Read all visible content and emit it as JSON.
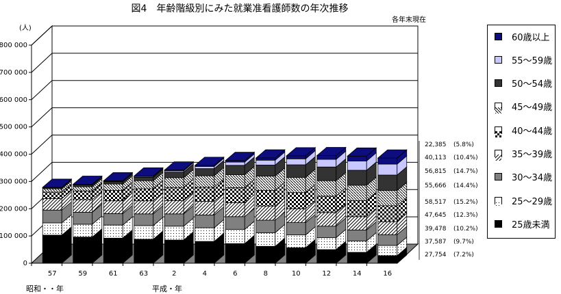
{
  "title": "図4　年齢階級別にみた就業准看護師数の年次推移",
  "stand_date": "各年末現在",
  "era_labels": {
    "showa": "昭和・・年",
    "heisei": "平成・年"
  },
  "colors": {
    "60歳以上": "#0d0d80",
    "55～59歳": "#c8c8ff",
    "50～54歳": "#333333",
    "45～49歳": "#ffffff",
    "40～44歳": "#ffffff",
    "35～39歳": "#ffffff",
    "30～34歳": "#808080",
    "25～29歳": "#ffffff",
    "25歳未満": "#000000"
  },
  "chart_data": {
    "type": "bar",
    "stacked": true,
    "three_d": true,
    "title": "図4　年齢階級別にみた就業准看護師数の年次推移",
    "ylabel": "(人)",
    "ylim": [
      0,
      800000
    ],
    "yticks": [
      "0",
      "100 000",
      "200 000",
      "300 000",
      "400 000",
      "500 000",
      "600 000",
      "700 000",
      "800 000"
    ],
    "categories": [
      "57",
      "59",
      "61",
      "63",
      "2",
      "4",
      "6",
      "8",
      "10",
      "12",
      "14",
      "16"
    ],
    "legend": [
      "60歳以上",
      "55～59歳",
      "50～54歳",
      "45～49歳",
      "40～44歳",
      "35～39歳",
      "30～34歳",
      "25～29歳",
      "25歳未満"
    ],
    "series": [
      {
        "name": "25歳未満",
        "values": [
          103000,
          96000,
          92000,
          88000,
          85000,
          80000,
          72000,
          62000,
          57000,
          50000,
          40000,
          27754
        ]
      },
      {
        "name": "25～29歳",
        "values": [
          45000,
          47000,
          48000,
          50000,
          51000,
          50000,
          52000,
          50000,
          47000,
          44000,
          42000,
          37587
        ]
      },
      {
        "name": "30～34歳",
        "values": [
          47000,
          44000,
          42000,
          43000,
          45000,
          47000,
          47000,
          46000,
          45000,
          42000,
          40000,
          39478
        ]
      },
      {
        "name": "35～39歳",
        "values": [
          42000,
          46000,
          47000,
          48000,
          49000,
          50000,
          51000,
          52000,
          51000,
          50000,
          49000,
          47645
        ]
      },
      {
        "name": "40～44歳",
        "values": [
          24000,
          32000,
          38000,
          44000,
          48000,
          52000,
          55000,
          57000,
          59000,
          60000,
          59000,
          58517
        ]
      },
      {
        "name": "45～49歳",
        "values": [
          12000,
          16000,
          24000,
          30000,
          36000,
          42000,
          48000,
          53000,
          56000,
          57000,
          56000,
          55666
        ]
      },
      {
        "name": "50～54歳",
        "values": [
          4000,
          6000,
          8000,
          12000,
          20000,
          26000,
          34000,
          40000,
          46000,
          50000,
          55000,
          56815
        ]
      },
      {
        "name": "55～59歳",
        "values": [
          1000,
          1500,
          2000,
          3000,
          5000,
          8000,
          12000,
          18000,
          22000,
          28000,
          34000,
          40113
        ]
      },
      {
        "name": "60歳以上",
        "values": [
          500,
          1000,
          1500,
          2000,
          3000,
          4000,
          6000,
          8000,
          11000,
          14000,
          18000,
          22385
        ]
      }
    ],
    "annotations": [
      {
        "series": "60歳以上",
        "value": "22,385",
        "pct": "(5.8%)"
      },
      {
        "series": "55～59歳",
        "value": "40,113",
        "pct": "(10.4%)"
      },
      {
        "series": "50～54歳",
        "value": "56,815",
        "pct": "(14.7%)"
      },
      {
        "series": "45～49歳",
        "value": "55,666",
        "pct": "(14.4%)"
      },
      {
        "series": "40～44歳",
        "value": "58,517",
        "pct": "(15.2%)"
      },
      {
        "series": "35～39歳",
        "value": "47,645",
        "pct": "(12.3%)"
      },
      {
        "series": "30～34歳",
        "value": "39,478",
        "pct": "(10.2%)"
      },
      {
        "series": "25～29歳",
        "value": "37,587",
        "pct": "(9.7%)"
      },
      {
        "series": "25歳未満",
        "value": "27,754",
        "pct": "(7.2%)"
      }
    ],
    "grid": true,
    "legend_position": "right"
  }
}
